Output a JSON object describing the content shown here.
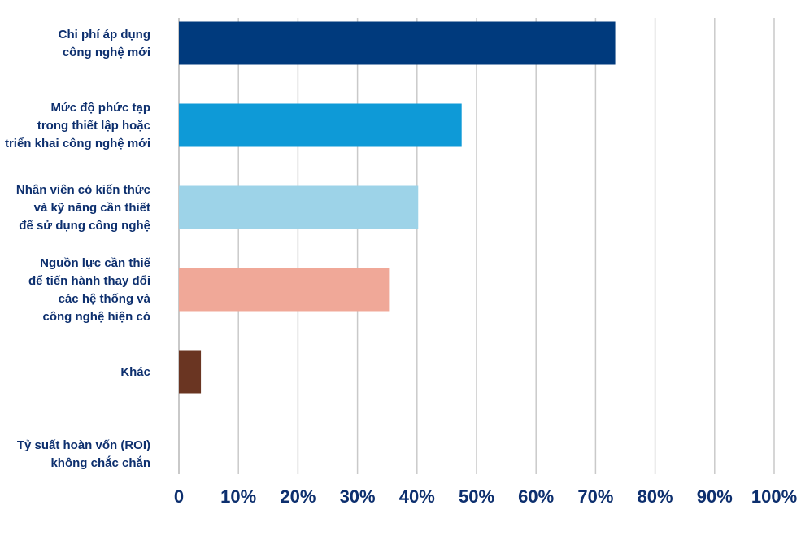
{
  "chart_data": {
    "type": "bar",
    "orientation": "horizontal",
    "title": "",
    "xlabel": "",
    "ylabel": "",
    "xlim": [
      0,
      100
    ],
    "grid": true,
    "categories": [
      [
        "Chi phí áp dụng",
        "công nghệ mới"
      ],
      [
        "Mức độ phức tạp",
        "trong thiết lập hoặc",
        "triển khai công nghệ mới"
      ],
      [
        "Nhân viên có kiến thức",
        "và kỹ năng cần thiết",
        "để sử dụng công nghệ"
      ],
      [
        "Nguồn lực cần thiế",
        "để tiến hành thay đổi",
        "các hệ thống và",
        "công nghệ hiện có"
      ],
      [
        "Khác"
      ],
      [
        "Tỷ suất hoàn vốn (ROI)",
        "không chắc chắn"
      ]
    ],
    "values": [
      73.3,
      47.5,
      40.2,
      35.3,
      3.7,
      0
    ],
    "colors": [
      "#003a7d",
      "#0e9ad7",
      "#9dd3e8",
      "#f0a898",
      "#6a3522",
      "#ffffff"
    ],
    "ticks": [
      "0",
      "10%",
      "20%",
      "30%",
      "40%",
      "50%",
      "60%",
      "70%",
      "80%",
      "90%",
      "100%"
    ]
  }
}
